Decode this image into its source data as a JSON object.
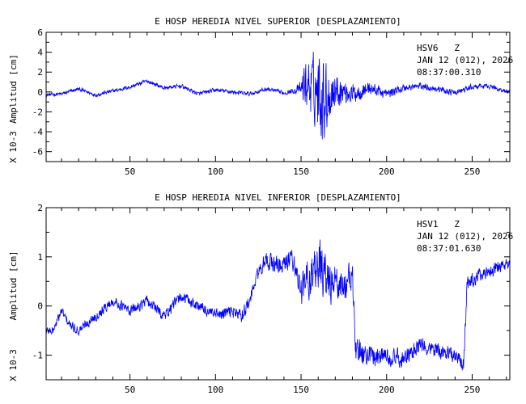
{
  "chart_data": [
    {
      "type": "line",
      "title": "E HOSP HEREDIA NIVEL SUPERIOR [DESPLAZAMIENTO]",
      "ylabel": "Amplitud [cm]",
      "yscale_label": "X 10-3",
      "xlim": [
        1,
        272
      ],
      "ylim": [
        -7,
        6
      ],
      "xticks": [
        50,
        100,
        150,
        200,
        250
      ],
      "yticks": [
        -6,
        -4,
        -2,
        0,
        2,
        4,
        6
      ],
      "station": "HSV6   Z",
      "date": "JAN 12 (012), 2026",
      "time": "08:37:00.310",
      "series_color": "#0000ff",
      "envelope": [
        [
          1,
          -0.3
        ],
        [
          10,
          -0.2
        ],
        [
          20,
          0.3
        ],
        [
          30,
          -0.3
        ],
        [
          40,
          0.1
        ],
        [
          50,
          0.5
        ],
        [
          60,
          1.1
        ],
        [
          70,
          0.4
        ],
        [
          80,
          0.6
        ],
        [
          90,
          -0.2
        ],
        [
          100,
          0.2
        ],
        [
          110,
          0.0
        ],
        [
          120,
          -0.2
        ],
        [
          130,
          0.3
        ],
        [
          140,
          -0.1
        ],
        [
          150,
          0.3
        ],
        [
          152,
          0.8
        ],
        [
          160,
          0.2
        ],
        [
          165,
          -0.5
        ],
        [
          170,
          0.3
        ],
        [
          180,
          -0.2
        ],
        [
          190,
          0.4
        ],
        [
          200,
          -0.2
        ],
        [
          210,
          0.4
        ],
        [
          220,
          0.6
        ],
        [
          230,
          0.3
        ],
        [
          240,
          -0.1
        ],
        [
          250,
          0.5
        ],
        [
          260,
          0.6
        ],
        [
          265,
          0.3
        ],
        [
          272,
          0.0
        ]
      ],
      "amplitude": [
        [
          1,
          0.25
        ],
        [
          145,
          0.3
        ],
        [
          150,
          1.0
        ],
        [
          153,
          3.5
        ],
        [
          157,
          4.2
        ],
        [
          162,
          6.0
        ],
        [
          166,
          4.0
        ],
        [
          170,
          2.5
        ],
        [
          175,
          1.5
        ],
        [
          185,
          1.1
        ],
        [
          200,
          0.6
        ],
        [
          220,
          0.45
        ],
        [
          272,
          0.3
        ]
      ]
    },
    {
      "type": "line",
      "title": "E HOSP HEREDIA NIVEL INFERIOR [DESPLAZAMIENTO]",
      "ylabel": "Amplitud [cm]",
      "yscale_label": "X 10-3",
      "xlim": [
        1,
        272
      ],
      "ylim": [
        -1.5,
        2.0
      ],
      "xticks": [
        50,
        100,
        150,
        200,
        250
      ],
      "yticks": [
        -1,
        0,
        1,
        2
      ],
      "station": "HSV1   Z",
      "date": "JAN 12 (012), 2026",
      "time": "08:37:01.630",
      "series_color": "#0000ff",
      "envelope": [
        [
          1,
          -0.5
        ],
        [
          5,
          -0.5
        ],
        [
          10,
          -0.1
        ],
        [
          15,
          -0.4
        ],
        [
          20,
          -0.5
        ],
        [
          30,
          -0.2
        ],
        [
          40,
          0.1
        ],
        [
          50,
          -0.1
        ],
        [
          60,
          0.1
        ],
        [
          70,
          -0.2
        ],
        [
          80,
          0.2
        ],
        [
          90,
          0.0
        ],
        [
          100,
          -0.2
        ],
        [
          110,
          -0.1
        ],
        [
          115,
          -0.2
        ],
        [
          120,
          0.1
        ],
        [
          125,
          0.7
        ],
        [
          130,
          0.9
        ],
        [
          140,
          0.8
        ],
        [
          145,
          1.0
        ],
        [
          150,
          0.3
        ],
        [
          155,
          0.6
        ],
        [
          160,
          0.9
        ],
        [
          165,
          0.5
        ],
        [
          175,
          0.4
        ],
        [
          180,
          0.6
        ],
        [
          182,
          -0.9
        ],
        [
          190,
          -1.0
        ],
        [
          200,
          -1.0
        ],
        [
          210,
          -1.1
        ],
        [
          220,
          -0.8
        ],
        [
          230,
          -0.9
        ],
        [
          240,
          -1.0
        ],
        [
          245,
          -1.2
        ],
        [
          247,
          0.4
        ],
        [
          252,
          0.6
        ],
        [
          260,
          0.7
        ],
        [
          265,
          0.8
        ],
        [
          270,
          0.8
        ]
      ],
      "amplitude": [
        [
          1,
          0.12
        ],
        [
          120,
          0.18
        ],
        [
          145,
          0.3
        ],
        [
          155,
          0.55
        ],
        [
          162,
          0.7
        ],
        [
          170,
          0.5
        ],
        [
          182,
          0.35
        ],
        [
          200,
          0.25
        ],
        [
          272,
          0.18
        ]
      ]
    }
  ]
}
